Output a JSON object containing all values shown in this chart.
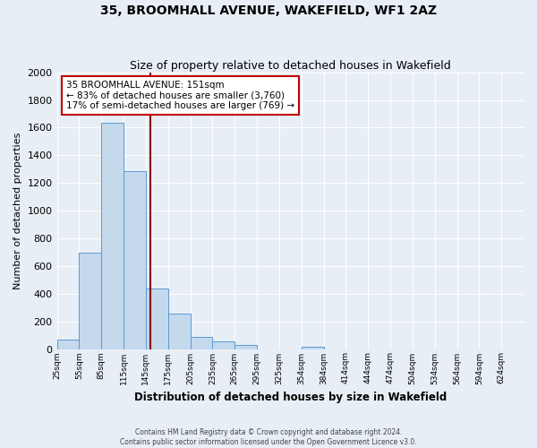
{
  "title": "35, BROOMHALL AVENUE, WAKEFIELD, WF1 2AZ",
  "subtitle": "Size of property relative to detached houses in Wakefield",
  "xlabel": "Distribution of detached houses by size in Wakefield",
  "ylabel": "Number of detached properties",
  "categories": [
    "25sqm",
    "55sqm",
    "85sqm",
    "115sqm",
    "145sqm",
    "175sqm",
    "205sqm",
    "235sqm",
    "265sqm",
    "295sqm",
    "325sqm",
    "354sqm",
    "384sqm",
    "414sqm",
    "444sqm",
    "474sqm",
    "504sqm",
    "534sqm",
    "564sqm",
    "594sqm",
    "624sqm"
  ],
  "bar_values": [
    65,
    695,
    1635,
    1285,
    440,
    255,
    90,
    55,
    28,
    0,
    0,
    15,
    0,
    0,
    0,
    0,
    0,
    0,
    0,
    0,
    0
  ],
  "bar_color": "#c5d9ed",
  "bar_edge_color": "#5b9bd5",
  "ylim": [
    0,
    2000
  ],
  "yticks": [
    0,
    200,
    400,
    600,
    800,
    1000,
    1200,
    1400,
    1600,
    1800,
    2000
  ],
  "property_line_x": 4,
  "property_line_label": "35 BROOMHALL AVENUE: 151sqm",
  "annotation_line1": "← 83% of detached houses are smaller (3,760)",
  "annotation_line2": "17% of semi-detached houses are larger (769) →",
  "annotation_box_color": "#ffffff",
  "annotation_box_edge_color": "#c00000",
  "bin_edges": [
    0,
    1,
    2,
    3,
    4,
    5,
    6,
    7,
    8,
    9,
    10,
    11,
    12,
    13,
    14,
    15,
    16,
    17,
    18,
    19,
    20,
    21
  ],
  "footer1": "Contains HM Land Registry data © Crown copyright and database right 2024.",
  "footer2": "Contains public sector information licensed under the Open Government Licence v3.0.",
  "bg_color": "#e8eef5",
  "plot_bg_color": "#e8eef5",
  "grid_color": "#ffffff",
  "title_fontsize": 10,
  "subtitle_fontsize": 9
}
